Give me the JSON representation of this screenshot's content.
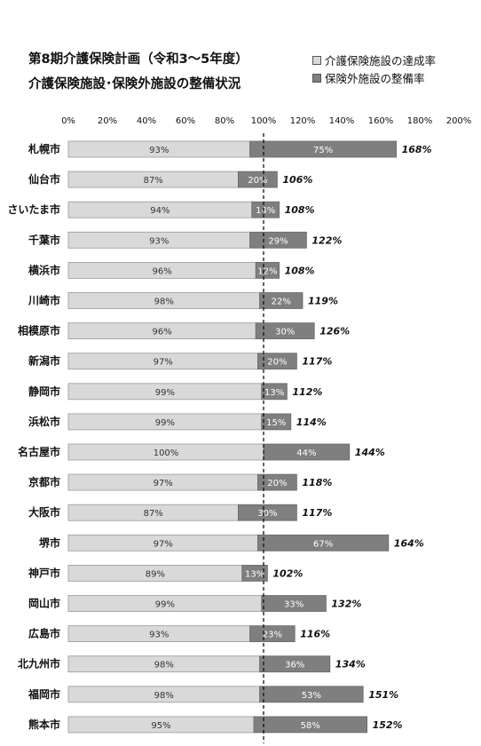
{
  "chart_data": {
    "type": "bar",
    "orientation": "horizontal",
    "stacked": true,
    "title": "第8期介護保険計画（令和3～5年度）",
    "subtitle": "介護保険施設･保険外施設の整備状況",
    "categories": [
      "札幌市",
      "仙台市",
      "さいたま市",
      "千葉市",
      "横浜市",
      "川崎市",
      "相模原市",
      "新潟市",
      "静岡市",
      "浜松市",
      "名古屋市",
      "京都市",
      "大阪市",
      "堺市",
      "神戸市",
      "岡山市",
      "広島市",
      "北九州市",
      "福岡市",
      "熊本市"
    ],
    "series": [
      {
        "name": "介護保険施設の達成率",
        "color": "#d9d9d9",
        "values": [
          93,
          87,
          94,
          93,
          96,
          98,
          96,
          97,
          99,
          99,
          100,
          97,
          87,
          97,
          89,
          99,
          93,
          98,
          98,
          95
        ],
        "labels": [
          "93%",
          "87%",
          "94%",
          "93%",
          "96%",
          "98%",
          "96%",
          "97%",
          "99%",
          "99%",
          "100%",
          "97%",
          "87%",
          "97%",
          "89%",
          "99%",
          "93%",
          "98%",
          "98%",
          "95%"
        ]
      },
      {
        "name": "保険外施設の整備率",
        "color": "#7f7f7f",
        "values": [
          75,
          20,
          14,
          29,
          12,
          22,
          30,
          20,
          13,
          15,
          44,
          20,
          30,
          67,
          13,
          33,
          23,
          36,
          53,
          58
        ],
        "labels": [
          "75%",
          "20%",
          "14%",
          "29%",
          "12%",
          "22%",
          "30%",
          "20%",
          "13%",
          "15%",
          "44%",
          "20%",
          "30%",
          "67%",
          "13%",
          "33%",
          "23%",
          "36%",
          "53%",
          "58%"
        ]
      }
    ],
    "totals": [
      168,
      106,
      108,
      122,
      108,
      119,
      126,
      117,
      112,
      114,
      144,
      118,
      117,
      164,
      102,
      132,
      116,
      134,
      151,
      152
    ],
    "total_labels": [
      "168%",
      "106%",
      "108%",
      "122%",
      "108%",
      "119%",
      "126%",
      "117%",
      "112%",
      "114%",
      "144%",
      "118%",
      "117%",
      "164%",
      "102%",
      "132%",
      "116%",
      "134%",
      "151%",
      "152%"
    ],
    "xlim": [
      0,
      200
    ],
    "x_ticks": [
      0,
      20,
      40,
      60,
      80,
      100,
      120,
      140,
      160,
      180,
      200
    ],
    "x_tick_labels": [
      "0%",
      "20%",
      "40%",
      "60%",
      "80%",
      "100%",
      "120%",
      "140%",
      "160%",
      "180%",
      "200%"
    ],
    "reference_line": 100,
    "legend_position": "top-right",
    "grid": false
  }
}
